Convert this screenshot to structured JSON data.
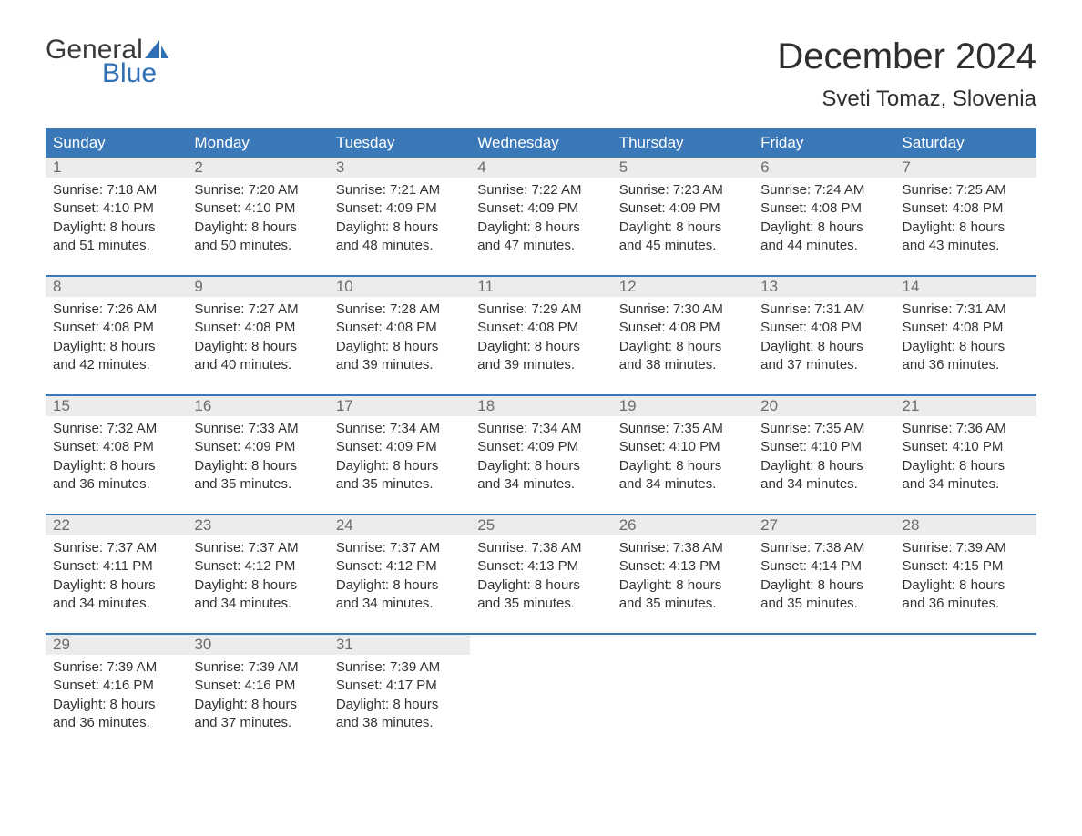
{
  "logo": {
    "word1": "General",
    "word2": "Blue",
    "word2_color": "#2f6fb5",
    "sail_color": "#2f6fb5"
  },
  "title": "December 2024",
  "location": "Sveti Tomaz, Slovenia",
  "colors": {
    "header_bg": "#3B78B8",
    "header_text": "#ffffff",
    "daynum_bg": "#ECECEC",
    "daynum_text": "#6d6d6d",
    "body_text": "#333333",
    "week_border": "#3B78B8",
    "page_bg": "#ffffff"
  },
  "typography": {
    "title_fontsize": 40,
    "location_fontsize": 24,
    "dayhead_fontsize": 17,
    "cell_fontsize": 15
  },
  "day_headers": [
    "Sunday",
    "Monday",
    "Tuesday",
    "Wednesday",
    "Thursday",
    "Friday",
    "Saturday"
  ],
  "labels": {
    "sunrise": "Sunrise:",
    "sunset": "Sunset:",
    "daylight": "Daylight:"
  },
  "weeks": [
    [
      {
        "n": "1",
        "sr": "7:18 AM",
        "ss": "4:10 PM",
        "dl": "8 hours and 51 minutes."
      },
      {
        "n": "2",
        "sr": "7:20 AM",
        "ss": "4:10 PM",
        "dl": "8 hours and 50 minutes."
      },
      {
        "n": "3",
        "sr": "7:21 AM",
        "ss": "4:09 PM",
        "dl": "8 hours and 48 minutes."
      },
      {
        "n": "4",
        "sr": "7:22 AM",
        "ss": "4:09 PM",
        "dl": "8 hours and 47 minutes."
      },
      {
        "n": "5",
        "sr": "7:23 AM",
        "ss": "4:09 PM",
        "dl": "8 hours and 45 minutes."
      },
      {
        "n": "6",
        "sr": "7:24 AM",
        "ss": "4:08 PM",
        "dl": "8 hours and 44 minutes."
      },
      {
        "n": "7",
        "sr": "7:25 AM",
        "ss": "4:08 PM",
        "dl": "8 hours and 43 minutes."
      }
    ],
    [
      {
        "n": "8",
        "sr": "7:26 AM",
        "ss": "4:08 PM",
        "dl": "8 hours and 42 minutes."
      },
      {
        "n": "9",
        "sr": "7:27 AM",
        "ss": "4:08 PM",
        "dl": "8 hours and 40 minutes."
      },
      {
        "n": "10",
        "sr": "7:28 AM",
        "ss": "4:08 PM",
        "dl": "8 hours and 39 minutes."
      },
      {
        "n": "11",
        "sr": "7:29 AM",
        "ss": "4:08 PM",
        "dl": "8 hours and 39 minutes."
      },
      {
        "n": "12",
        "sr": "7:30 AM",
        "ss": "4:08 PM",
        "dl": "8 hours and 38 minutes."
      },
      {
        "n": "13",
        "sr": "7:31 AM",
        "ss": "4:08 PM",
        "dl": "8 hours and 37 minutes."
      },
      {
        "n": "14",
        "sr": "7:31 AM",
        "ss": "4:08 PM",
        "dl": "8 hours and 36 minutes."
      }
    ],
    [
      {
        "n": "15",
        "sr": "7:32 AM",
        "ss": "4:08 PM",
        "dl": "8 hours and 36 minutes."
      },
      {
        "n": "16",
        "sr": "7:33 AM",
        "ss": "4:09 PM",
        "dl": "8 hours and 35 minutes."
      },
      {
        "n": "17",
        "sr": "7:34 AM",
        "ss": "4:09 PM",
        "dl": "8 hours and 35 minutes."
      },
      {
        "n": "18",
        "sr": "7:34 AM",
        "ss": "4:09 PM",
        "dl": "8 hours and 34 minutes."
      },
      {
        "n": "19",
        "sr": "7:35 AM",
        "ss": "4:10 PM",
        "dl": "8 hours and 34 minutes."
      },
      {
        "n": "20",
        "sr": "7:35 AM",
        "ss": "4:10 PM",
        "dl": "8 hours and 34 minutes."
      },
      {
        "n": "21",
        "sr": "7:36 AM",
        "ss": "4:10 PM",
        "dl": "8 hours and 34 minutes."
      }
    ],
    [
      {
        "n": "22",
        "sr": "7:37 AM",
        "ss": "4:11 PM",
        "dl": "8 hours and 34 minutes."
      },
      {
        "n": "23",
        "sr": "7:37 AM",
        "ss": "4:12 PM",
        "dl": "8 hours and 34 minutes."
      },
      {
        "n": "24",
        "sr": "7:37 AM",
        "ss": "4:12 PM",
        "dl": "8 hours and 34 minutes."
      },
      {
        "n": "25",
        "sr": "7:38 AM",
        "ss": "4:13 PM",
        "dl": "8 hours and 35 minutes."
      },
      {
        "n": "26",
        "sr": "7:38 AM",
        "ss": "4:13 PM",
        "dl": "8 hours and 35 minutes."
      },
      {
        "n": "27",
        "sr": "7:38 AM",
        "ss": "4:14 PM",
        "dl": "8 hours and 35 minutes."
      },
      {
        "n": "28",
        "sr": "7:39 AM",
        "ss": "4:15 PM",
        "dl": "8 hours and 36 minutes."
      }
    ],
    [
      {
        "n": "29",
        "sr": "7:39 AM",
        "ss": "4:16 PM",
        "dl": "8 hours and 36 minutes."
      },
      {
        "n": "30",
        "sr": "7:39 AM",
        "ss": "4:16 PM",
        "dl": "8 hours and 37 minutes."
      },
      {
        "n": "31",
        "sr": "7:39 AM",
        "ss": "4:17 PM",
        "dl": "8 hours and 38 minutes."
      },
      null,
      null,
      null,
      null
    ]
  ]
}
